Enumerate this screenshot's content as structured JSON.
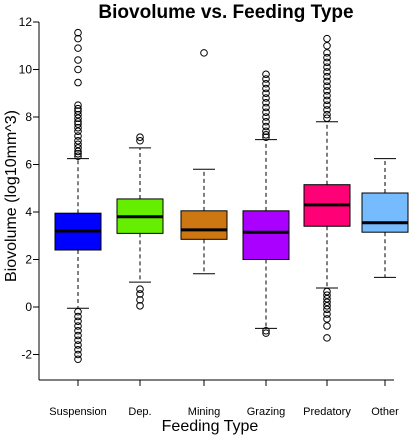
{
  "chart_data": {
    "type": "box",
    "title": "Biovolume vs. Feeding Type",
    "xlabel": "Feeding Type",
    "ylabel": "Biovolume (log10mm^3)",
    "ylim": [
      -3,
      12
    ],
    "yticks": [
      -2,
      0,
      2,
      4,
      6,
      8,
      10,
      12
    ],
    "grid": false,
    "legend": "none",
    "categories": [
      "Suspension",
      "Dep.",
      "Mining",
      "Grazing",
      "Predatory",
      "Other"
    ],
    "boxes": [
      {
        "category": "Suspension",
        "color": "#0000ff",
        "whisker_low": -0.05,
        "q1": 2.4,
        "median": 3.2,
        "q3": 3.95,
        "whisker_high": 6.25,
        "outliers": [
          11.55,
          11.3,
          10.9,
          10.4,
          10.0,
          9.45,
          8.5,
          8.35,
          8.25,
          8.1,
          7.95,
          7.8,
          7.7,
          7.55,
          7.4,
          7.2,
          7.0,
          6.85,
          6.7,
          6.55,
          6.45,
          6.35,
          -0.2,
          -0.4,
          -0.6,
          -0.8,
          -1.0,
          -1.2,
          -1.4,
          -1.6,
          -1.8,
          -2.0,
          -2.2
        ]
      },
      {
        "category": "Dep.",
        "color": "#66ee00",
        "whisker_low": 1.05,
        "q1": 3.1,
        "median": 3.8,
        "q3": 4.55,
        "whisker_high": 6.7,
        "outliers": [
          7.15,
          7.0,
          0.75,
          0.55,
          0.3,
          0.05
        ]
      },
      {
        "category": "Mining",
        "color": "#cc7711",
        "whisker_low": 1.4,
        "q1": 2.85,
        "median": 3.25,
        "q3": 4.05,
        "whisker_high": 5.8,
        "outliers": [
          10.7
        ]
      },
      {
        "category": "Grazing",
        "color": "#aa00ff",
        "whisker_low": -0.9,
        "q1": 2.0,
        "median": 3.15,
        "q3": 4.05,
        "whisker_high": 7.05,
        "outliers": [
          9.8,
          9.6,
          9.4,
          9.2,
          9.0,
          8.8,
          8.6,
          8.4,
          8.2,
          8.0,
          7.8,
          7.6,
          7.4,
          7.25,
          7.15,
          -1.0,
          -1.1
        ]
      },
      {
        "category": "Predatory",
        "color": "#ff0077",
        "whisker_low": 0.8,
        "q1": 3.4,
        "median": 4.3,
        "q3": 5.15,
        "whisker_high": 7.8,
        "outliers": [
          11.3,
          11.0,
          10.7,
          10.5,
          10.3,
          10.1,
          9.9,
          9.7,
          9.5,
          9.3,
          9.1,
          8.9,
          8.7,
          8.5,
          8.3,
          8.1,
          7.95,
          0.65,
          0.5,
          0.35,
          0.2,
          0.05,
          -0.1,
          -0.3,
          -0.5,
          -0.8,
          -1.3
        ]
      },
      {
        "category": "Other",
        "color": "#77bbff",
        "whisker_low": 1.25,
        "q1": 3.15,
        "median": 3.55,
        "q3": 4.8,
        "whisker_high": 6.25,
        "outliers": []
      }
    ]
  }
}
